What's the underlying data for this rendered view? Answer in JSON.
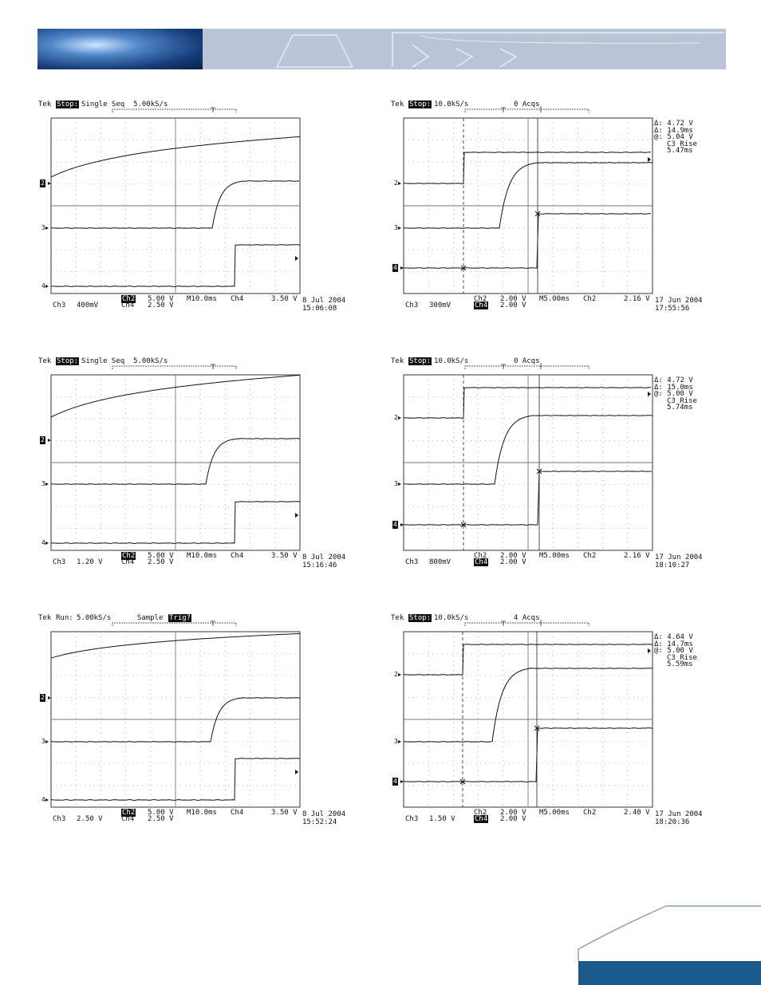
{
  "scopes": [
    {
      "id": "a",
      "header": {
        "prefix": "Tek",
        "state": "Stop:",
        "rest": "Single Seq  5.00kS/s",
        "flag": ""
      },
      "markers": [
        "2",
        "3",
        "4"
      ],
      "markers_inverted": [
        true,
        false,
        false
      ],
      "cursor": false,
      "bottom_left": {
        "ch": "Ch3",
        "scale": "400mV"
      },
      "bottom_mid": {
        "line1_ch": "Ch2",
        "line1_val": "5.00 V",
        "line2_ch": "Ch4",
        "line2_val": "2.50 V",
        "line1_inv": true,
        "line2_inv": false
      },
      "timebase": "M10.0ms",
      "trig": "Ch4",
      "trig_level": "3.50 V",
      "date": "8 Jul 2004",
      "time": "15:06:08",
      "readout": []
    },
    {
      "id": "b",
      "header": {
        "prefix": "Tek",
        "state": "Stop:",
        "rest": "10.0kS/s",
        "flag": "0 Acqs"
      },
      "markers": [
        "2",
        "3",
        "4"
      ],
      "markers_inverted": [
        false,
        false,
        true
      ],
      "cursor": true,
      "bottom_left": {
        "ch": "Ch3",
        "scale": "300mV"
      },
      "bottom_mid": {
        "line1_ch": "Ch2",
        "line1_val": "2.00 V",
        "line2_ch": "Ch4",
        "line2_val": "2.00 V",
        "line1_inv": false,
        "line2_inv": true
      },
      "timebase": "M5.00ms",
      "trig": "Ch2",
      "trig_level": "2.16 V",
      "date": "17 Jun 2004",
      "time": "17:55:56",
      "readout": [
        "Δ: 4.72 V",
        "Δ: 14.9ms",
        "@: 5.04 V",
        "C3 Rise",
        "5.47ms"
      ]
    },
    {
      "id": "c",
      "header": {
        "prefix": "Tek",
        "state": "Stop:",
        "rest": "Single Seq  5.00kS/s",
        "flag": ""
      },
      "markers": [
        "2",
        "3",
        "4"
      ],
      "markers_inverted": [
        true,
        false,
        false
      ],
      "cursor": false,
      "bottom_left": {
        "ch": "Ch3",
        "scale": "1.20 V"
      },
      "bottom_mid": {
        "line1_ch": "Ch2",
        "line1_val": "5.00 V",
        "line2_ch": "Ch4",
        "line2_val": "2.50 V",
        "line1_inv": true,
        "line2_inv": false
      },
      "timebase": "M10.0ms",
      "trig": "Ch4",
      "trig_level": "3.50 V",
      "date": "8 Jul 2004",
      "time": "15:16:46",
      "readout": []
    },
    {
      "id": "d",
      "header": {
        "prefix": "Tek",
        "state": "Stop:",
        "rest": "10.0kS/s",
        "flag": "0 Acqs"
      },
      "markers": [
        "2",
        "3",
        "4"
      ],
      "markers_inverted": [
        false,
        false,
        true
      ],
      "cursor": true,
      "bottom_left": {
        "ch": "Ch3",
        "scale": "800mV"
      },
      "bottom_mid": {
        "line1_ch": "Ch2",
        "line1_val": "2.00 V",
        "line2_ch": "Ch4",
        "line2_val": "2.00 V",
        "line1_inv": false,
        "line2_inv": true
      },
      "timebase": "M5.00ms",
      "trig": "Ch2",
      "trig_level": "2.16 V",
      "date": "17 Jun 2004",
      "time": "18:10:27",
      "readout": [
        "Δ: 4.72 V",
        "Δ: 15.0ms",
        "@: 5.00 V",
        "C3 Rise",
        "5.74ms"
      ]
    },
    {
      "id": "e",
      "header": {
        "prefix": "Tek",
        "state": "Run:",
        "rest": "5.00kS/s      Sample",
        "flag": "Trig?"
      },
      "markers": [
        "2",
        "3",
        "4"
      ],
      "markers_inverted": [
        true,
        false,
        false
      ],
      "cursor": false,
      "bottom_left": {
        "ch": "Ch3",
        "scale": "2.50 V"
      },
      "bottom_mid": {
        "line1_ch": "Ch2",
        "line1_val": "5.00 V",
        "line2_ch": "Ch4",
        "line2_val": "2.50 V",
        "line1_inv": true,
        "line2_inv": false
      },
      "timebase": "M10.0ms",
      "trig": "Ch4",
      "trig_level": "3.50 V",
      "date": "8 Jul 2004",
      "time": "15:52:24",
      "readout": []
    },
    {
      "id": "f",
      "header": {
        "prefix": "Tek",
        "state": "Stop:",
        "rest": "10.0kS/s",
        "flag": "4 Acqs"
      },
      "markers": [
        "2",
        "3",
        "4"
      ],
      "markers_inverted": [
        false,
        false,
        true
      ],
      "cursor": true,
      "bottom_left": {
        "ch": "Ch3",
        "scale": "1.50 V"
      },
      "bottom_mid": {
        "line1_ch": "Ch2",
        "line1_val": "2.00 V",
        "line2_ch": "Ch4",
        "line2_val": "2.00 V",
        "line1_inv": false,
        "line2_inv": true
      },
      "timebase": "M5.00ms",
      "trig": "Ch2",
      "trig_level": "2.40 V",
      "date": "17 Jun 2004",
      "time": "18:20:36",
      "readout": [
        "Δ: 4.64 V",
        "Δ: 14.7ms",
        "@: 5.00 V",
        "C3 Rise",
        "5.59ms"
      ]
    }
  ],
  "colors": {
    "banner": "#b9c4d6",
    "footer_bar": "#1d5a8c",
    "trace": "#111111"
  }
}
